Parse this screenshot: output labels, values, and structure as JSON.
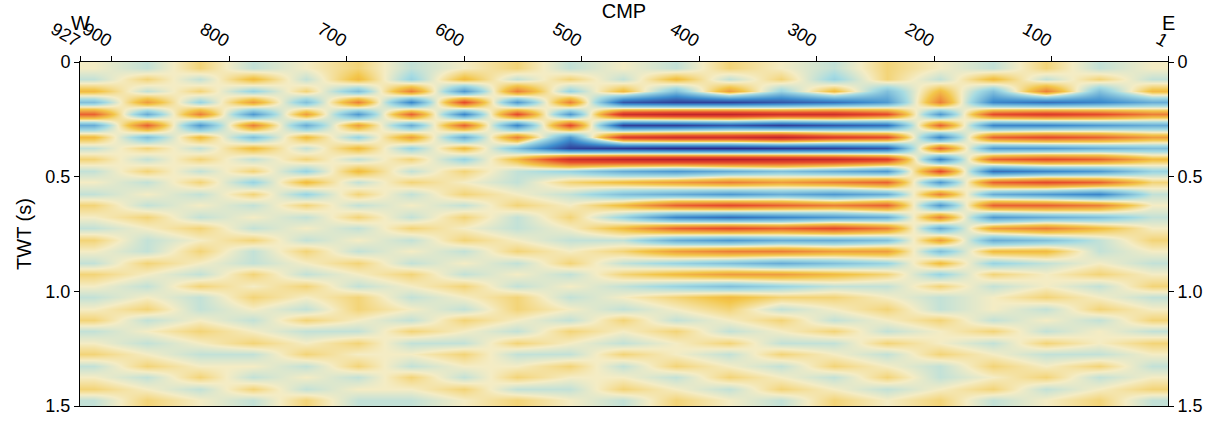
{
  "chart_data": {
    "type": "heatmap",
    "xlabel": "CMP",
    "ylabel": "TWT (s)",
    "annotations": [
      {
        "text": "W",
        "x": 927
      },
      {
        "text": "E",
        "x": 1
      }
    ],
    "xlim": [
      927,
      1
    ],
    "xticks": [
      927,
      900,
      800,
      700,
      600,
      500,
      400,
      300,
      200,
      100,
      1
    ],
    "ylim": [
      1.5,
      0
    ],
    "yticks": [
      0,
      0.5,
      {
        "value": 1,
        "label": "1.0"
      },
      1.5
    ],
    "y2lim": [
      1.5,
      0
    ],
    "y2ticks": [
      0,
      0.5,
      {
        "value": 1,
        "label": "1.0"
      },
      1.5
    ],
    "grid": false,
    "zlim": [
      -1,
      1
    ],
    "x": [
      915,
      870,
      825,
      780,
      735,
      690,
      645,
      600,
      555,
      510,
      465,
      420,
      375,
      330,
      285,
      240,
      195,
      150,
      105,
      60,
      15
    ],
    "y": [
      0.025,
      0.075,
      0.125,
      0.175,
      0.225,
      0.275,
      0.325,
      0.375,
      0.425,
      0.475,
      0.525,
      0.575,
      0.625,
      0.675,
      0.725,
      0.775,
      0.825,
      0.875,
      0.925,
      0.975,
      1.025,
      1.075,
      1.125,
      1.175,
      1.225,
      1.275,
      1.325,
      1.375,
      1.425,
      1.475
    ],
    "z": [
      [
        0,
        0.1,
        -0.1,
        0.1,
        0,
        -0.1,
        0.1,
        0,
        -0.1,
        0.1,
        0,
        0.1,
        -0.1,
        0,
        0.1,
        -0.1,
        0,
        0.1,
        -0.1,
        0.1,
        0
      ],
      [
        0.1,
        -0.1,
        0.1,
        -0.2,
        0.1,
        -0.2,
        0.2,
        -0.2,
        0.1,
        -0.1,
        0.1,
        -0.2,
        0.1,
        -0.1,
        0.2,
        -0.1,
        0.1,
        -0.2,
        0.1,
        -0.1,
        0.1
      ],
      [
        -0.2,
        0.1,
        -0.1,
        0.2,
        -0.1,
        0.3,
        -0.4,
        0.5,
        -0.4,
        0.2,
        -0.2,
        0.3,
        -0.3,
        0.2,
        -0.2,
        0.3,
        -0.2,
        0.3,
        -0.4,
        0.3,
        -0.2
      ],
      [
        0.3,
        -0.3,
        0.2,
        -0.3,
        0.3,
        -0.4,
        0.6,
        -0.6,
        0.5,
        -0.4,
        0.8,
        0.9,
        0.9,
        0.8,
        0.7,
        0.5,
        -0.4,
        0.6,
        0.7,
        0.6,
        0.4
      ],
      [
        -0.5,
        0.4,
        -0.4,
        0.5,
        -0.3,
        0.5,
        -0.5,
        0.6,
        -0.6,
        0.5,
        -0.8,
        -0.9,
        -0.9,
        -0.8,
        -0.8,
        -0.6,
        0.5,
        -0.6,
        -0.7,
        -0.6,
        -0.4
      ],
      [
        0.4,
        -0.5,
        0.5,
        -0.4,
        0.4,
        -0.3,
        0.4,
        -0.5,
        0.6,
        -0.6,
        0.9,
        0.9,
        0.8,
        0.9,
        0.8,
        0.7,
        -0.5,
        0.6,
        0.6,
        0.5,
        0.4
      ],
      [
        -0.2,
        0.3,
        -0.2,
        0.3,
        -0.2,
        0.2,
        -0.3,
        0.4,
        -0.4,
        0.5,
        -0.7,
        -0.8,
        -0.8,
        -0.9,
        -0.7,
        -0.6,
        0.6,
        -0.5,
        -0.6,
        -0.5,
        -0.3
      ],
      [
        0.1,
        -0.1,
        0.1,
        -0.2,
        0.1,
        -0.2,
        0.2,
        -0.2,
        0.3,
        0.9,
        0.95,
        1,
        1,
        0.95,
        0.9,
        0.8,
        -0.5,
        0.5,
        0.5,
        0.4,
        0.3
      ],
      [
        -0.1,
        0.1,
        -0.1,
        0.1,
        -0.1,
        0.1,
        -0.1,
        0.2,
        -0.2,
        -0.8,
        -0.9,
        -0.95,
        -0.95,
        -0.9,
        -0.85,
        -0.7,
        0.6,
        -0.5,
        -0.6,
        -0.5,
        -0.2
      ],
      [
        0.1,
        -0.1,
        0.1,
        -0.1,
        0.2,
        -0.2,
        0.1,
        -0.1,
        0.1,
        0.2,
        0.4,
        0.5,
        0.4,
        0.3,
        0.4,
        0.5,
        -0.6,
        0.7,
        0.6,
        0.5,
        0.2
      ],
      [
        0,
        0.1,
        -0.1,
        0.2,
        -0.2,
        0.1,
        -0.1,
        0,
        0.1,
        -0.1,
        -0.2,
        -0.3,
        -0.4,
        -0.3,
        -0.4,
        -0.5,
        0.5,
        -0.5,
        -0.6,
        -0.5,
        -0.1
      ],
      [
        0.1,
        0,
        0.1,
        -0.1,
        0.2,
        -0.1,
        0.1,
        -0.1,
        0,
        0.1,
        0.3,
        0.4,
        0.5,
        0.4,
        0.5,
        0.4,
        -0.4,
        0.4,
        0.5,
        0.6,
        0.1
      ],
      [
        -0.1,
        0.1,
        0,
        0.1,
        -0.1,
        0.1,
        0,
        0.1,
        -0.1,
        0,
        -0.2,
        -0.5,
        -0.6,
        -0.5,
        -0.4,
        -0.5,
        0.5,
        -0.5,
        -0.5,
        -0.4,
        0
      ],
      [
        0,
        -0.1,
        0.1,
        0,
        0.1,
        -0.1,
        0.1,
        -0.1,
        0.1,
        -0.1,
        0.2,
        0.6,
        0.7,
        0.6,
        0.5,
        0.4,
        -0.4,
        0.5,
        0.4,
        0.3,
        0.1
      ],
      [
        0.1,
        0,
        -0.1,
        0.1,
        0,
        0.1,
        -0.1,
        0,
        0.1,
        0,
        -0.2,
        -0.5,
        -0.6,
        -0.5,
        -0.6,
        -0.4,
        0.4,
        -0.3,
        -0.4,
        -0.2,
        0
      ],
      [
        -0.1,
        0.1,
        0,
        -0.1,
        0.1,
        0,
        0.1,
        -0.1,
        0,
        0.1,
        0.1,
        0.4,
        0.5,
        0.4,
        0.4,
        0.3,
        -0.3,
        0.4,
        0.3,
        0.1,
        -0.1
      ],
      [
        0,
        0.1,
        -0.1,
        0.1,
        -0.1,
        0.1,
        0,
        0.1,
        -0.1,
        0,
        -0.1,
        -0.3,
        -0.4,
        -0.4,
        -0.3,
        -0.3,
        0.3,
        -0.2,
        -0.2,
        0.1,
        0
      ],
      [
        0.1,
        -0.1,
        0,
        0.1,
        0,
        -0.1,
        0.1,
        0,
        0.1,
        -0.1,
        0.1,
        0.2,
        0.3,
        0.4,
        0.3,
        0.2,
        -0.2,
        0.2,
        0.1,
        0,
        0.1
      ],
      [
        -0.1,
        0,
        0.1,
        -0.1,
        0.1,
        0,
        -0.1,
        0.1,
        0,
        0.1,
        -0.1,
        -0.2,
        -0.3,
        -0.3,
        -0.2,
        -0.1,
        0.2,
        -0.1,
        0,
        -0.1,
        0
      ],
      [
        0,
        0.1,
        -0.1,
        0,
        -0.1,
        0.1,
        0,
        -0.1,
        0.1,
        0,
        0.1,
        0.2,
        0.3,
        0.2,
        0.1,
        0.1,
        -0.1,
        0.1,
        0,
        0.1,
        -0.1
      ],
      [
        0.1,
        0,
        0.1,
        -0.1,
        0,
        -0.1,
        0.1,
        0,
        -0.1,
        0.1,
        0,
        -0.1,
        -0.2,
        -0.1,
        -0.1,
        0,
        0.1,
        0,
        -0.1,
        0,
        0.1
      ],
      [
        0,
        -0.1,
        0.1,
        0,
        0.1,
        -0.1,
        0,
        0.1,
        -0.1,
        0,
        0.1,
        0,
        -0.1,
        0.1,
        0,
        -0.1,
        0.1,
        0,
        0.1,
        -0.1,
        0
      ],
      [
        -0.1,
        0.1,
        0,
        0.1,
        -0.1,
        0,
        0.1,
        -0.1,
        0,
        0.1,
        -0.1,
        0.1,
        0,
        -0.1,
        0.1,
        0,
        -0.1,
        0.1,
        0,
        0.1,
        -0.1
      ],
      [
        0.1,
        0,
        -0.1,
        0,
        0.1,
        0.1,
        -0.1,
        0,
        0.1,
        -0.1,
        0,
        -0.1,
        0.1,
        0,
        -0.1,
        0.1,
        0,
        -0.1,
        0.1,
        0,
        0.1
      ],
      [
        0,
        0.1,
        0,
        -0.1,
        0,
        -0.1,
        0.1,
        0.1,
        -0.1,
        0,
        0.1,
        0,
        -0.1,
        0.1,
        0.1,
        -0.1,
        0,
        0.1,
        -0.1,
        0,
        -0.1
      ],
      [
        -0.1,
        0,
        0.1,
        0.1,
        -0.1,
        0,
        0,
        -0.1,
        0.1,
        0.1,
        -0.1,
        0,
        0.1,
        -0.1,
        0,
        0.1,
        -0.1,
        0,
        0.1,
        0.1,
        0
      ],
      [
        0.1,
        -0.1,
        0,
        0,
        0.1,
        -0.1,
        0.1,
        0,
        0,
        -0.1,
        0.1,
        -0.1,
        0,
        0.1,
        -0.1,
        0,
        0.1,
        -0.1,
        0,
        -0.1,
        0.1
      ],
      [
        0,
        0.1,
        -0.1,
        0.1,
        0,
        0.1,
        -0.1,
        0.1,
        -0.1,
        0,
        0,
        0.1,
        -0.1,
        0,
        0.1,
        -0.1,
        0.1,
        0,
        -0.1,
        0.1,
        0
      ],
      [
        -0.1,
        0,
        0.1,
        -0.1,
        0.1,
        0,
        0,
        -0.1,
        0.1,
        0.1,
        -0.1,
        0,
        0.1,
        -0.1,
        0,
        0.1,
        0,
        -0.1,
        0.1,
        0,
        -0.1
      ],
      [
        0.1,
        -0.1,
        0,
        0.1,
        -0.1,
        0.1,
        0.1,
        0,
        -0.1,
        0,
        0.1,
        -0.1,
        0,
        0.1,
        -0.1,
        0,
        -0.1,
        0.1,
        0,
        -0.1,
        0.1
      ]
    ]
  }
}
